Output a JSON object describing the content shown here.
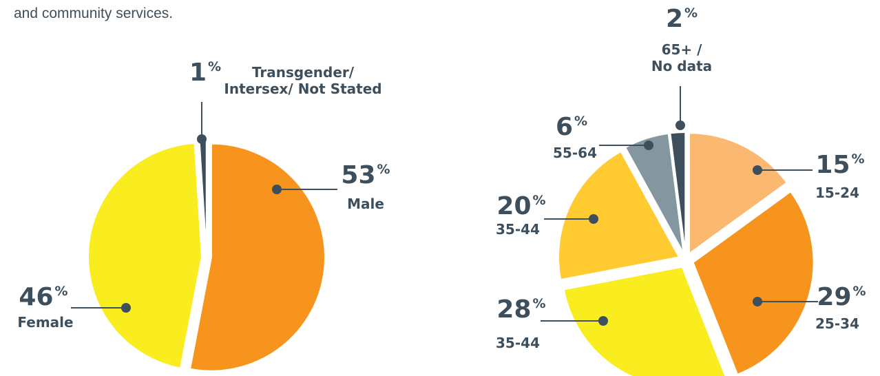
{
  "intro": "and community services.",
  "chart_data": [
    {
      "type": "pie",
      "unit": "%",
      "categories": [
        "Male",
        "Female",
        "Transgender/ Intersex/ Not Stated"
      ],
      "values": [
        53,
        46,
        1
      ],
      "colors": [
        "#f7941d",
        "#f9ec1f",
        "#3d4f5c"
      ]
    },
    {
      "type": "pie",
      "unit": "%",
      "categories": [
        "15-24",
        "25-34",
        "35-44",
        "35-44",
        "55-64",
        "65+ / No data"
      ],
      "values": [
        15,
        29,
        28,
        20,
        6,
        2
      ],
      "colors": [
        "#fbb870",
        "#f7941d",
        "#f9ec1f",
        "#ffcb31",
        "#8497a0",
        "#3d4f5c"
      ]
    }
  ]
}
